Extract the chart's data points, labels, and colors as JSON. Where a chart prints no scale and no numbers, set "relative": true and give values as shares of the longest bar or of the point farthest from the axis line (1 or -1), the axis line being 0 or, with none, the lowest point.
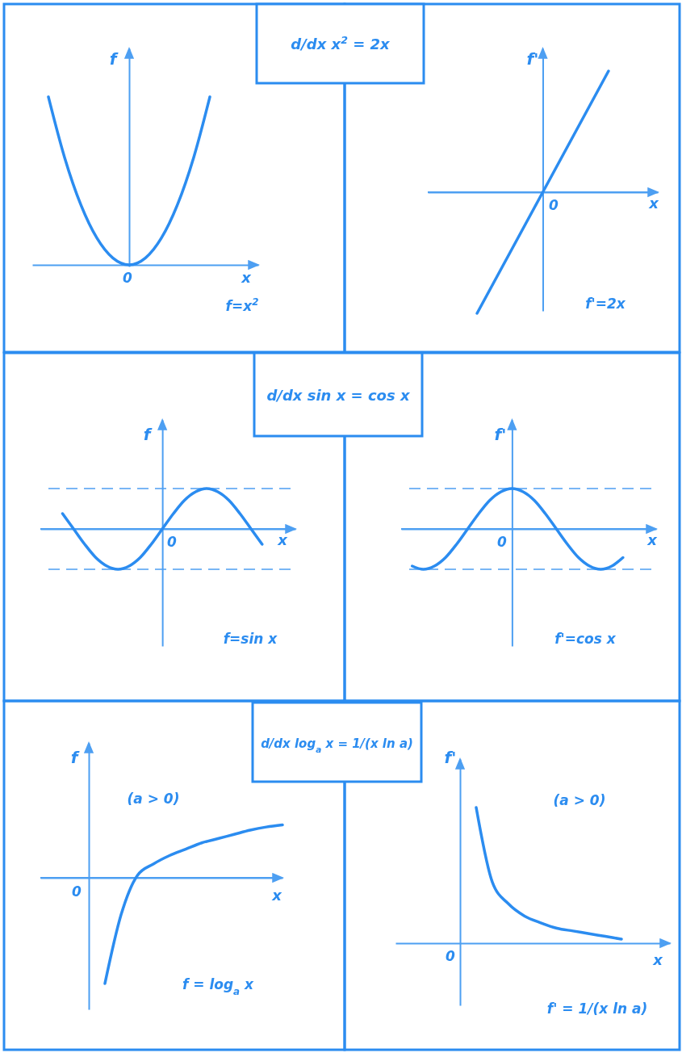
{
  "chart_data": [
    {
      "type": "other",
      "title": "d/dx x$^{2}$ = 2x"
    },
    {
      "type": "line",
      "relative": true,
      "ylabel": "f",
      "xlabel": "x",
      "color": "#2b8cf0",
      "annotations": [
        "0",
        "f=x$^{2}$"
      ],
      "categories": [
        null,
        null,
        null,
        null,
        null,
        null,
        null,
        null,
        null,
        null,
        null,
        null,
        null,
        null,
        null
      ],
      "values": [
        null,
        1,
        0.64,
        0.36,
        0.16,
        0.04,
        0,
        0.04,
        0.16,
        0.36,
        0.64,
        1,
        null,
        null,
        null
      ]
    },
    {
      "type": "line",
      "relative": true,
      "ylabel": "f'",
      "xlabel": "x",
      "color": "#2b8cf0",
      "annotations": [
        "0",
        "f'=2x"
      ],
      "ref_lines": [
        {
          "axis": "y",
          "value": 0
        }
      ],
      "categories": [
        null,
        null,
        null,
        null,
        null,
        null,
        null,
        null,
        null,
        null,
        null,
        null,
        null,
        null,
        null
      ],
      "values": [
        null,
        null,
        null,
        -1,
        -0.75,
        -0.5,
        -0.25,
        0,
        0.25,
        0.5,
        0.75,
        1,
        null,
        null,
        null
      ]
    },
    {
      "type": "other",
      "title": "d/dx sin x = cos x"
    },
    {
      "type": "line",
      "relative": true,
      "ylabel": "f",
      "xlabel": "x",
      "color": "#2b8cf0",
      "annotations": [
        "0",
        "f=sin x"
      ],
      "ref_lines": [
        {
          "axis": "y",
          "value": 1,
          "line_style": "dashed"
        },
        {
          "axis": "y",
          "value": -1,
          "line_style": "dashed"
        },
        {
          "axis": "y",
          "value": 0
        }
      ],
      "categories": [
        null,
        null,
        null,
        null,
        null,
        null,
        null,
        null,
        null,
        null,
        null,
        null,
        null,
        null,
        null,
        null,
        null,
        null,
        null,
        null,
        null,
        null,
        null,
        null
      ],
      "values": [
        null,
        null,
        0.38,
        0,
        -0.38,
        -0.71,
        -0.92,
        -1,
        -0.92,
        -0.71,
        -0.38,
        0,
        0.38,
        0.71,
        0.92,
        1,
        0.92,
        0.71,
        0.38,
        0,
        -0.38,
        null,
        null,
        null
      ]
    },
    {
      "type": "line",
      "relative": true,
      "ylabel": "f'",
      "xlabel": "x",
      "color": "#2b8cf0",
      "annotations": [
        "0",
        "f'=cos x"
      ],
      "ref_lines": [
        {
          "axis": "y",
          "value": 1,
          "line_style": "dashed"
        },
        {
          "axis": "y",
          "value": -1,
          "line_style": "dashed"
        },
        {
          "axis": "y",
          "value": 0
        }
      ],
      "categories": [
        null,
        null,
        null,
        null,
        null,
        null,
        null,
        null,
        null,
        null,
        null,
        null,
        null,
        null,
        null,
        null,
        null,
        null,
        null,
        null,
        null,
        null,
        null,
        null
      ],
      "values": [
        null,
        -0.92,
        -1,
        -0.92,
        -0.71,
        -0.38,
        0,
        0.38,
        0.71,
        0.92,
        1,
        0.92,
        0.71,
        0.38,
        0,
        -0.38,
        -0.71,
        -0.92,
        -1,
        -0.92,
        -0.71,
        null,
        null,
        null
      ]
    },
    {
      "type": "other",
      "title": "d/dx log$_{a}$ x = 1/(x ln a)"
    },
    {
      "type": "line",
      "relative": true,
      "ylabel": "f",
      "xlabel": "x",
      "color": "#2b8cf0",
      "annotations": [
        "0",
        "(a > 0)",
        "f = log$_{a}$ x"
      ],
      "ref_lines": [
        {
          "axis": "y",
          "value": 0
        }
      ],
      "categories": [
        null,
        null,
        null,
        null,
        null,
        null,
        null,
        null,
        null,
        null,
        null,
        null,
        null,
        null,
        null,
        null
      ],
      "values": [
        null,
        null,
        null,
        null,
        -1,
        -0.35,
        0.02,
        0.13,
        0.21,
        0.27,
        0.33,
        0.37,
        0.41,
        0.45,
        0.48,
        0.5
      ]
    },
    {
      "type": "line",
      "relative": true,
      "ylabel": "f'",
      "xlabel": "x",
      "color": "#2b8cf0",
      "annotations": [
        "0",
        "(a > 0)",
        "f' = 1/(x ln a)"
      ],
      "categories": [
        null,
        null,
        null,
        null,
        null,
        null,
        null,
        null,
        null,
        null,
        null,
        null,
        null,
        null,
        null,
        null,
        null,
        null
      ],
      "values": [
        null,
        null,
        null,
        null,
        null,
        1,
        0.45,
        0.29,
        0.2,
        0.15,
        0.11,
        0.09,
        0.07,
        0.05,
        0.03,
        null,
        null,
        null
      ]
    }
  ]
}
